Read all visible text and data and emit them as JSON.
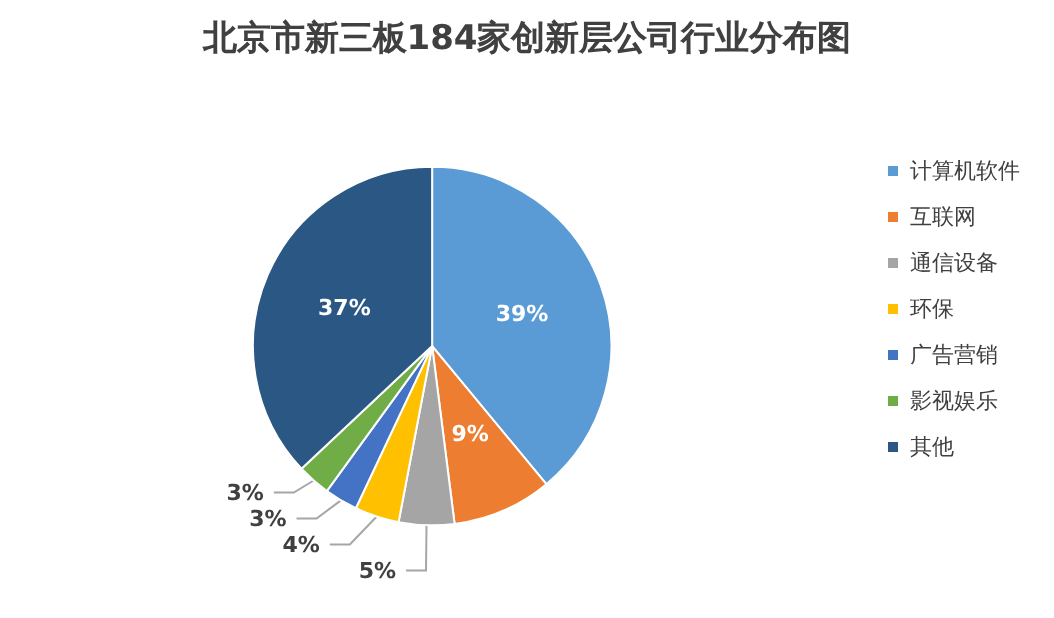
{
  "chart_data": {
    "type": "pie",
    "title": "北京市新三板184家创新层公司行业分布图",
    "categories": [
      "计算机软件",
      "互联网",
      "通信设备",
      "环保",
      "广告营销",
      "影视娱乐",
      "其他"
    ],
    "values": [
      39,
      9,
      5,
      4,
      3,
      3,
      37
    ],
    "value_labels": [
      "39%",
      "9%",
      "5%",
      "4%",
      "3%",
      "3%",
      "37%"
    ],
    "colors": [
      "#5b9bd5",
      "#ed7d31",
      "#a5a5a5",
      "#ffc000",
      "#4472c4",
      "#70ad47",
      "#2a5783"
    ],
    "legend": "right"
  }
}
